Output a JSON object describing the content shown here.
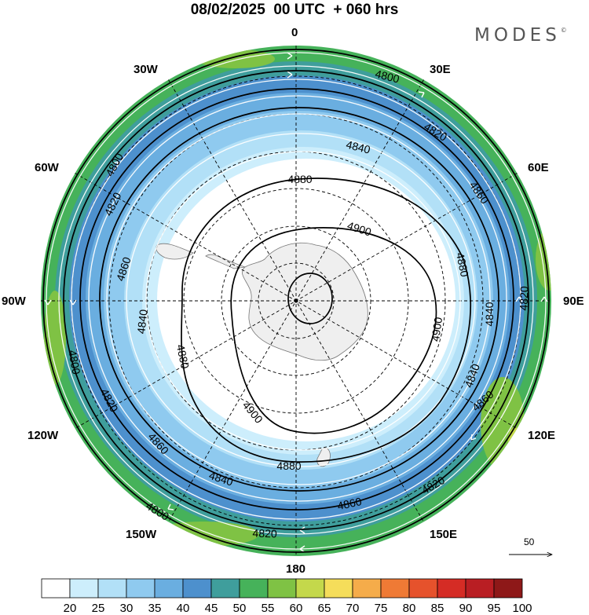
{
  "title": "08/02/2025  00 UTC  + 060 hrs",
  "brand": "MODES",
  "brand_mark": "©",
  "longitude_labels": {
    "lon_0": "0",
    "lon_30e": "30E",
    "lon_60e": "60E",
    "lon_90e": "90E",
    "lon_120e": "120E",
    "lon_150e": "150E",
    "lon_180": "180",
    "lon_150w": "150W",
    "lon_120w": "120W",
    "lon_90w": "90W",
    "lon_60w": "60W",
    "lon_30w": "30W"
  },
  "contour_labels": [
    "4800",
    "4820",
    "4840",
    "4860",
    "4880",
    "4900"
  ],
  "contours": [
    {
      "value": 4900,
      "label": "4900"
    },
    {
      "value": 4880,
      "label": "4880"
    },
    {
      "value": 4860,
      "label": "4860"
    },
    {
      "value": 4840,
      "label": "4840"
    },
    {
      "value": 4820,
      "label": "4820"
    },
    {
      "value": 4800,
      "label": "4800"
    }
  ],
  "colorbar": {
    "labels": [
      "20",
      "25",
      "30",
      "35",
      "40",
      "45",
      "50",
      "55",
      "60",
      "65",
      "70",
      "75",
      "80",
      "85",
      "90",
      "95",
      "100"
    ],
    "colors": [
      "#ffffff",
      "#cdeefc",
      "#b2e0f7",
      "#8fcaef",
      "#6aaee0",
      "#4d90cd",
      "#3f9e9c",
      "#46b25a",
      "#7fc244",
      "#c4d84b",
      "#f5dd5a",
      "#f5ac4a",
      "#ef7a35",
      "#e6522c",
      "#d52c25",
      "#b91e23",
      "#8e1818"
    ]
  },
  "reference_vector": {
    "value": "50"
  },
  "map": {
    "projection": "polar stereographic, south pole centered",
    "variables": [
      "500 hPa geopotential height contours",
      "wind speed shading",
      "wind streamlines"
    ],
    "colors": {
      "land": "#efefef",
      "contour": "#000000",
      "streamline": "#ffffff",
      "grid": "#000000"
    }
  }
}
